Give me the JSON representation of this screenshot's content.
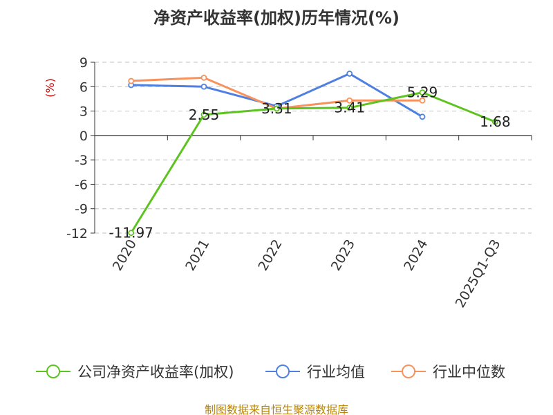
{
  "chart_data": {
    "type": "line",
    "title": "净资产收益率(加权)历年情况(%)",
    "unit": "(%)",
    "categories": [
      "2020",
      "2021",
      "2022",
      "2023",
      "2024",
      "2025Q1-Q3"
    ],
    "ylim": [
      -12,
      9
    ],
    "yticks": [
      9,
      6,
      3,
      0,
      -3,
      -6,
      -9,
      -12
    ],
    "grid": true,
    "legend_position": "bottom",
    "series": [
      {
        "name": "公司净资产收益率(加权)",
        "color": "#5cc31f",
        "values": [
          -11.97,
          2.55,
          3.31,
          3.41,
          5.29,
          1.68
        ],
        "labels": [
          "-11.97",
          "2.55",
          "3.31",
          "3.41",
          "5.29",
          "1.68"
        ]
      },
      {
        "name": "行业均值",
        "color": "#4f7fe0",
        "values": [
          6.2,
          6.0,
          3.6,
          7.6,
          2.3,
          null
        ]
      },
      {
        "name": "行业中位数",
        "color": "#f7925c",
        "values": [
          6.7,
          7.1,
          3.3,
          4.3,
          4.3,
          null
        ]
      }
    ]
  },
  "source_text": "制图数据来自恒生聚源数据库"
}
